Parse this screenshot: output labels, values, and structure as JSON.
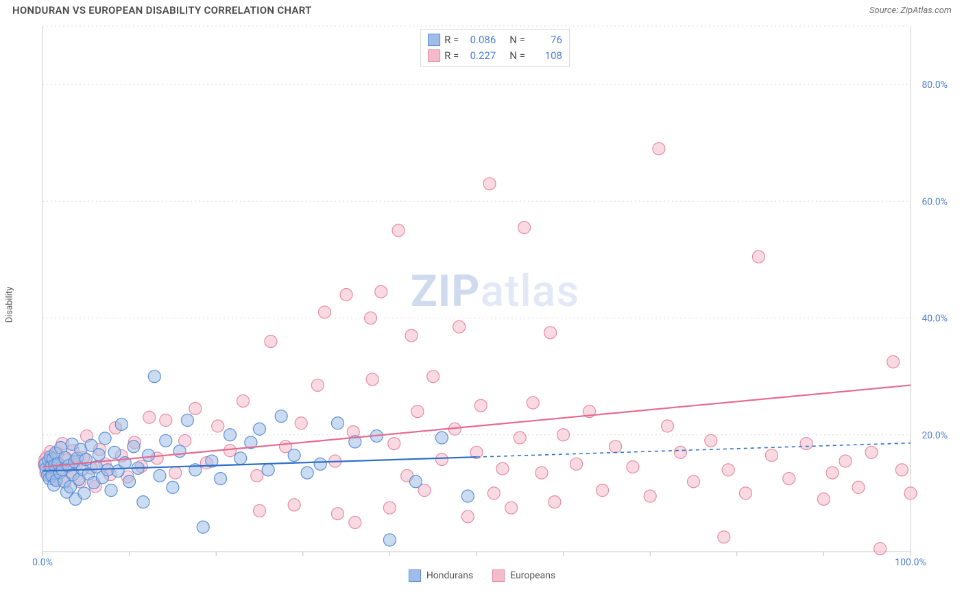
{
  "header": {
    "title": "HONDURAN VS EUROPEAN DISABILITY CORRELATION CHART",
    "source": "Source: ZipAtlas.com"
  },
  "ylabel": "Disability",
  "watermark": {
    "bold": "ZIP",
    "rest": "atlas"
  },
  "chart": {
    "type": "scatter",
    "background_color": "#ffffff",
    "grid_color": "#d9d9d9",
    "axis_color": "#c8c8c8",
    "xlim": [
      0,
      100
    ],
    "ylim": [
      0,
      90
    ],
    "x_ticks": [
      0,
      10,
      20,
      30,
      40,
      50,
      60,
      70,
      80,
      90,
      100
    ],
    "x_tick_labels": {
      "0": "0.0%",
      "100": "100.0%"
    },
    "y_ticks": [
      20,
      40,
      60,
      80
    ],
    "y_tick_labels": {
      "20": "20.0%",
      "40": "40.0%",
      "60": "60.0%",
      "80": "80.0%"
    },
    "marker_radius": 9,
    "marker_opacity": 0.55,
    "trend_line_width": 2.2,
    "tick_label_color": "#4b7fd1",
    "tick_label_fontsize": 14
  },
  "series": {
    "hondurans": {
      "label": "Hondurans",
      "fill": "#9fbde8",
      "stroke": "#5a8fd6",
      "trend_color": "#2f6fc9",
      "trend": {
        "x1": 0,
        "y1": 13.8,
        "x2": 50,
        "y2": 16.2,
        "dash_x2": 100,
        "dash_y2": 18.6
      },
      "stats": {
        "R": "0.086",
        "N": "76"
      },
      "points": [
        [
          0.3,
          15.0
        ],
        [
          0.4,
          14.2
        ],
        [
          0.6,
          13.1
        ],
        [
          0.7,
          15.6
        ],
        [
          0.8,
          12.5
        ],
        [
          0.9,
          16.2
        ],
        [
          1.0,
          14.5
        ],
        [
          1.1,
          13.0
        ],
        [
          1.2,
          15.9
        ],
        [
          1.3,
          11.4
        ],
        [
          1.4,
          14.8
        ],
        [
          1.5,
          16.9
        ],
        [
          1.6,
          12.2
        ],
        [
          1.8,
          15.1
        ],
        [
          2.0,
          13.5
        ],
        [
          2.1,
          17.8
        ],
        [
          2.3,
          14.0
        ],
        [
          2.5,
          12.0
        ],
        [
          2.6,
          16.1
        ],
        [
          2.8,
          10.2
        ],
        [
          3.0,
          14.7
        ],
        [
          3.2,
          11.1
        ],
        [
          3.4,
          18.4
        ],
        [
          3.5,
          13.2
        ],
        [
          3.7,
          15.4
        ],
        [
          3.8,
          9.0
        ],
        [
          4.0,
          16.0
        ],
        [
          4.2,
          12.4
        ],
        [
          4.4,
          17.5
        ],
        [
          4.6,
          14.1
        ],
        [
          4.8,
          10.0
        ],
        [
          5.0,
          15.8
        ],
        [
          5.3,
          13.3
        ],
        [
          5.6,
          18.2
        ],
        [
          5.9,
          11.8
        ],
        [
          6.2,
          14.5
        ],
        [
          6.5,
          16.6
        ],
        [
          6.9,
          12.7
        ],
        [
          7.2,
          19.4
        ],
        [
          7.5,
          14.0
        ],
        [
          7.9,
          10.5
        ],
        [
          8.3,
          17.0
        ],
        [
          8.7,
          13.8
        ],
        [
          9.1,
          21.8
        ],
        [
          9.5,
          15.2
        ],
        [
          10.0,
          12.0
        ],
        [
          10.5,
          18.0
        ],
        [
          11.0,
          14.3
        ],
        [
          11.6,
          8.5
        ],
        [
          12.2,
          16.5
        ],
        [
          12.9,
          30.0
        ],
        [
          13.5,
          13.0
        ],
        [
          14.2,
          19.0
        ],
        [
          15.0,
          11.0
        ],
        [
          15.8,
          17.2
        ],
        [
          16.7,
          22.5
        ],
        [
          17.6,
          14.0
        ],
        [
          18.5,
          4.2
        ],
        [
          19.5,
          15.5
        ],
        [
          20.5,
          12.5
        ],
        [
          21.6,
          20.0
        ],
        [
          22.8,
          16.0
        ],
        [
          24.0,
          18.7
        ],
        [
          25.0,
          21.0
        ],
        [
          26.0,
          14.0
        ],
        [
          27.5,
          23.2
        ],
        [
          29.0,
          16.5
        ],
        [
          30.5,
          13.5
        ],
        [
          32.0,
          15.0
        ],
        [
          34.0,
          22.0
        ],
        [
          36.0,
          18.8
        ],
        [
          38.5,
          19.8
        ],
        [
          40.0,
          2.0
        ],
        [
          43.0,
          12.0
        ],
        [
          46.0,
          19.5
        ],
        [
          49.0,
          9.5
        ]
      ]
    },
    "europeans": {
      "label": "Europeans",
      "fill": "#f4bccb",
      "stroke": "#e68aa4",
      "trend_color": "#e6698f",
      "trend": {
        "x1": 0,
        "y1": 14.5,
        "x2": 100,
        "y2": 28.5
      },
      "stats": {
        "R": "0.227",
        "N": "108"
      },
      "points": [
        [
          0.2,
          14.9
        ],
        [
          0.3,
          15.8
        ],
        [
          0.4,
          13.5
        ],
        [
          0.5,
          16.2
        ],
        [
          0.7,
          14.0
        ],
        [
          0.9,
          17.1
        ],
        [
          1.1,
          13.0
        ],
        [
          1.3,
          15.4
        ],
        [
          1.5,
          12.3
        ],
        [
          1.7,
          16.8
        ],
        [
          2.0,
          14.2
        ],
        [
          2.3,
          18.5
        ],
        [
          2.6,
          11.9
        ],
        [
          2.9,
          15.7
        ],
        [
          3.2,
          13.6
        ],
        [
          3.5,
          17.3
        ],
        [
          3.9,
          14.9
        ],
        [
          4.3,
          12.0
        ],
        [
          4.7,
          16.1
        ],
        [
          5.1,
          19.8
        ],
        [
          5.6,
          14.3
        ],
        [
          6.1,
          11.2
        ],
        [
          6.6,
          17.5
        ],
        [
          7.2,
          15.0
        ],
        [
          7.8,
          13.2
        ],
        [
          8.4,
          21.2
        ],
        [
          9.1,
          16.4
        ],
        [
          9.8,
          12.8
        ],
        [
          10.6,
          18.7
        ],
        [
          11.4,
          14.6
        ],
        [
          12.3,
          23.0
        ],
        [
          13.2,
          16.0
        ],
        [
          14.2,
          22.5
        ],
        [
          15.3,
          13.5
        ],
        [
          16.4,
          19.0
        ],
        [
          17.6,
          24.5
        ],
        [
          18.9,
          15.2
        ],
        [
          20.2,
          21.5
        ],
        [
          21.6,
          17.3
        ],
        [
          23.1,
          25.8
        ],
        [
          24.7,
          13.0
        ],
        [
          25.0,
          7.0
        ],
        [
          26.3,
          36.0
        ],
        [
          28.0,
          18.0
        ],
        [
          29.0,
          8.0
        ],
        [
          29.8,
          22.0
        ],
        [
          31.7,
          28.5
        ],
        [
          32.5,
          41.0
        ],
        [
          33.7,
          15.5
        ],
        [
          34.0,
          6.5
        ],
        [
          35.0,
          44.0
        ],
        [
          35.8,
          20.5
        ],
        [
          36.0,
          5.0
        ],
        [
          37.8,
          40.0
        ],
        [
          38.0,
          29.5
        ],
        [
          39.0,
          44.5
        ],
        [
          40.0,
          7.5
        ],
        [
          40.5,
          18.5
        ],
        [
          41.0,
          55.0
        ],
        [
          42.0,
          13.0
        ],
        [
          42.5,
          37.0
        ],
        [
          43.2,
          24.0
        ],
        [
          44.0,
          10.5
        ],
        [
          45.0,
          30.0
        ],
        [
          46.0,
          15.8
        ],
        [
          47.5,
          21.0
        ],
        [
          48.0,
          38.5
        ],
        [
          49.0,
          6.0
        ],
        [
          50.0,
          17.0
        ],
        [
          50.5,
          25.0
        ],
        [
          51.5,
          63.0
        ],
        [
          52.0,
          10.0
        ],
        [
          53.0,
          14.2
        ],
        [
          54.0,
          7.5
        ],
        [
          55.0,
          19.5
        ],
        [
          55.5,
          55.5
        ],
        [
          56.5,
          25.5
        ],
        [
          57.5,
          13.5
        ],
        [
          58.5,
          37.5
        ],
        [
          59.0,
          8.5
        ],
        [
          60.0,
          20.0
        ],
        [
          61.5,
          15.0
        ],
        [
          63.0,
          24.0
        ],
        [
          64.5,
          10.5
        ],
        [
          66.0,
          18.0
        ],
        [
          68.0,
          14.5
        ],
        [
          70.0,
          9.5
        ],
        [
          71.0,
          69.0
        ],
        [
          72.0,
          21.5
        ],
        [
          73.5,
          17.0
        ],
        [
          75.0,
          12.0
        ],
        [
          77.0,
          19.0
        ],
        [
          78.5,
          2.5
        ],
        [
          79.0,
          14.0
        ],
        [
          81.0,
          10.0
        ],
        [
          82.5,
          50.5
        ],
        [
          84.0,
          16.5
        ],
        [
          86.0,
          12.5
        ],
        [
          88.0,
          18.5
        ],
        [
          90.0,
          9.0
        ],
        [
          91.0,
          13.5
        ],
        [
          92.5,
          15.5
        ],
        [
          94.0,
          11.0
        ],
        [
          95.5,
          17.0
        ],
        [
          96.5,
          0.5
        ],
        [
          98.0,
          32.5
        ],
        [
          99.0,
          14.0
        ],
        [
          100.0,
          10.0
        ]
      ]
    }
  },
  "legend_stats": {
    "labels": {
      "R": "R =",
      "N": "N ="
    }
  },
  "bottom_legend": {
    "items": [
      "hondurans",
      "europeans"
    ]
  }
}
